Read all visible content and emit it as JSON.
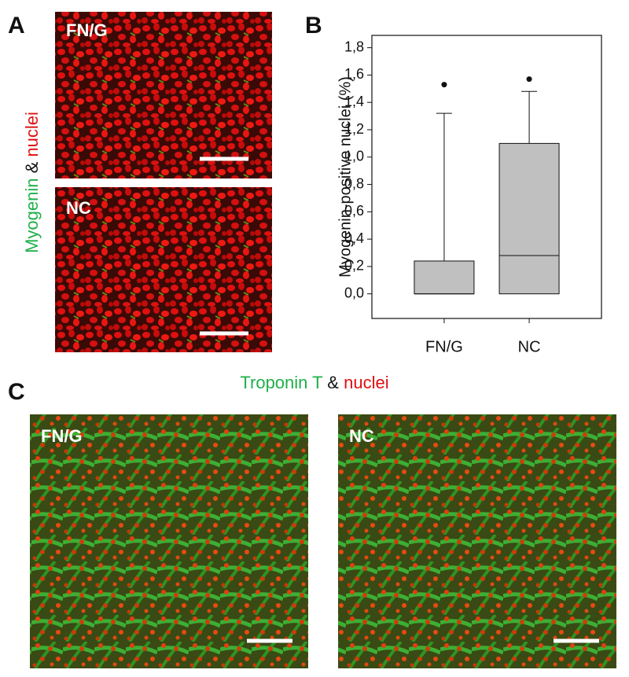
{
  "panel_a": {
    "label": "A",
    "images": [
      "FN/G",
      "NC"
    ],
    "stain": [
      "Myogenin",
      "&",
      "nuclei"
    ]
  },
  "panel_b": {
    "label": "B"
  },
  "panel_c": {
    "label": "C",
    "images": [
      "FN/G",
      "NC"
    ],
    "stain": [
      "Troponin T",
      "&",
      "nuclei"
    ]
  },
  "chart_data": {
    "type": "box",
    "y_label": "Myogenin-positive nuclei (%)",
    "categories": [
      "FN/G",
      "NC"
    ],
    "color": "#c0c0c0",
    "boxes": [
      {
        "min": 0,
        "q1": 0,
        "median": 0,
        "q3": 0.24,
        "max": 1.32,
        "outliers": [
          1.53
        ]
      },
      {
        "min": 0,
        "q1": 0,
        "median": 0.28,
        "q3": 1.1,
        "max": 1.48,
        "outliers": [
          1.57
        ]
      }
    ],
    "ylim": [
      -0.18,
      1.89
    ],
    "yticks": [
      {
        "value": 0,
        "label": "0,0"
      },
      {
        "value": 0.2,
        "label": "0,2"
      },
      {
        "value": 0.4,
        "label": "0,4"
      },
      {
        "value": 0.6,
        "label": "0,6"
      },
      {
        "value": 0.8,
        "label": "0,8"
      },
      {
        "value": 1,
        "label": "1,0"
      },
      {
        "value": 1.2,
        "label": "1,2"
      },
      {
        "value": 1.4,
        "label": "1,4"
      },
      {
        "value": 1.6,
        "label": "1,6"
      },
      {
        "value": 1.8,
        "label": "1,8"
      }
    ]
  }
}
